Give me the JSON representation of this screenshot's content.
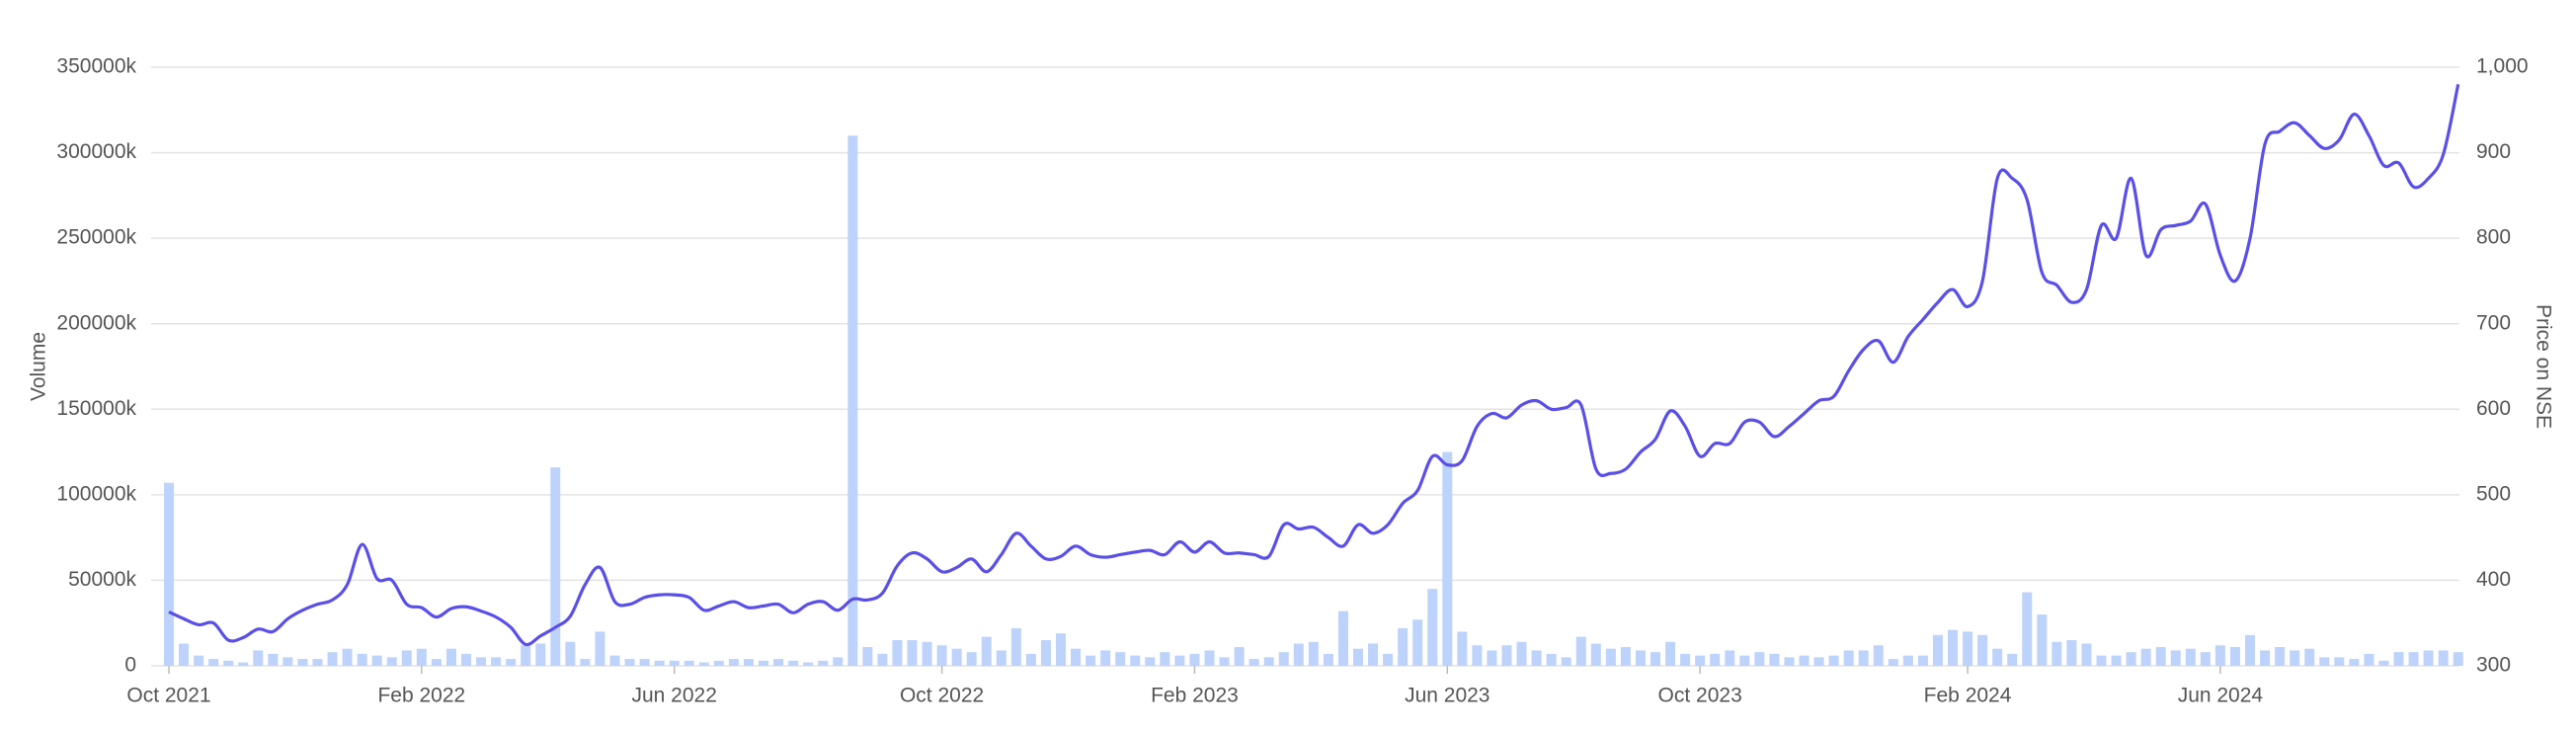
{
  "chart_data": {
    "type": "combo",
    "y_label": "Volume",
    "y2_label": "Price on NSE",
    "categories": [
      "Oct 2021",
      null,
      null,
      null,
      null,
      null,
      null,
      null,
      null,
      null,
      null,
      null,
      null,
      null,
      null,
      null,
      null,
      "Feb 2022",
      null,
      null,
      null,
      null,
      null,
      null,
      null,
      null,
      null,
      null,
      null,
      null,
      null,
      null,
      null,
      null,
      "Jun 2022",
      null,
      null,
      null,
      null,
      null,
      null,
      null,
      null,
      null,
      null,
      null,
      null,
      null,
      null,
      null,
      null,
      null,
      "Oct 2022",
      null,
      null,
      null,
      null,
      null,
      null,
      null,
      null,
      null,
      null,
      null,
      null,
      null,
      null,
      null,
      null,
      "Feb 2023",
      null,
      null,
      null,
      null,
      null,
      null,
      null,
      null,
      null,
      null,
      null,
      null,
      null,
      null,
      null,
      null,
      "Jun 2023",
      null,
      null,
      null,
      null,
      null,
      null,
      null,
      null,
      null,
      null,
      null,
      null,
      null,
      null,
      null,
      null,
      "Oct 2023",
      null,
      null,
      null,
      null,
      null,
      null,
      null,
      null,
      null,
      null,
      null,
      null,
      null,
      null,
      null,
      null,
      null,
      "Feb 2024",
      null,
      null,
      null,
      null,
      null,
      null,
      null,
      null,
      null,
      null,
      null,
      null,
      null,
      null,
      null,
      null,
      "Jun 2024",
      null,
      null,
      null,
      null,
      null,
      null,
      null,
      null,
      null,
      null,
      null,
      null,
      null,
      null,
      null,
      null
    ],
    "series": [
      {
        "type": "bar",
        "color": "#bdd3fb",
        "values": [
          107000,
          13000,
          6000,
          4000,
          3000,
          2000,
          9000,
          7000,
          5000,
          4000,
          4000,
          8000,
          10000,
          7000,
          6000,
          5000,
          9000,
          10000,
          4000,
          10000,
          7000,
          5000,
          5000,
          4000,
          12000,
          13000,
          116000,
          14000,
          4000,
          20000,
          6000,
          4000,
          4000,
          3000,
          3000,
          3000,
          2000,
          3000,
          4000,
          4000,
          3000,
          4000,
          3000,
          2000,
          3000,
          5000,
          310000,
          11000,
          7000,
          15000,
          15000,
          14000,
          12000,
          10000,
          8000,
          17000,
          9000,
          22000,
          7000,
          15000,
          19000,
          10000,
          6000,
          9000,
          8000,
          6000,
          5000,
          8000,
          6000,
          7000,
          9000,
          5000,
          11000,
          4000,
          5000,
          8000,
          13000,
          14000,
          7000,
          32000,
          10000,
          13000,
          7000,
          22000,
          27000,
          45000,
          125000,
          20000,
          12000,
          9000,
          12000,
          14000,
          9000,
          7000,
          5000,
          17000,
          13000,
          10000,
          11000,
          9000,
          8000,
          14000,
          7000,
          6000,
          7000,
          9000,
          6000,
          8000,
          7000,
          5000,
          6000,
          5000,
          6000,
          9000,
          9000,
          12000,
          4000,
          6000,
          6000,
          18000,
          21000,
          20000,
          18000,
          10000,
          7000,
          43000,
          30000,
          14000,
          15000,
          13000,
          6000,
          6000,
          8000,
          10000,
          11000,
          9000,
          10000,
          8000,
          12000,
          11000,
          18000,
          9000,
          11000,
          9000,
          10000,
          5000,
          5000,
          4000,
          7000,
          3000,
          8000,
          8000,
          9000,
          9000,
          8000
        ]
      },
      {
        "type": "line",
        "axis": "y2",
        "color": "#5a4fe6",
        "values": [
          363,
          355,
          348,
          350,
          330,
          333,
          343,
          340,
          355,
          365,
          372,
          377,
          395,
          442,
          402,
          400,
          372,
          368,
          357,
          367,
          369,
          364,
          357,
          345,
          325,
          335,
          345,
          358,
          395,
          415,
          375,
          372,
          380,
          383,
          383,
          380,
          365,
          370,
          375,
          368,
          370,
          372,
          362,
          372,
          375,
          365,
          378,
          377,
          385,
          417,
          432,
          425,
          410,
          415,
          425,
          410,
          430,
          455,
          440,
          425,
          428,
          440,
          430,
          427,
          430,
          433,
          435,
          430,
          445,
          433,
          445,
          432,
          432,
          430,
          428,
          465,
          460,
          462,
          450,
          440,
          465,
          455,
          465,
          490,
          505,
          545,
          535,
          540,
          580,
          595,
          590,
          605,
          610,
          600,
          602,
          605,
          530,
          525,
          530,
          550,
          565,
          598,
          580,
          545,
          560,
          560,
          585,
          585,
          568,
          580,
          595,
          610,
          615,
          645,
          670,
          680,
          655,
          685,
          705,
          725,
          740,
          720,
          750,
          870,
          870,
          845,
          760,
          745,
          725,
          740,
          815,
          800,
          870,
          780,
          810,
          815,
          820,
          840,
          780,
          750,
          800,
          910,
          925,
          935,
          920,
          905,
          915,
          945,
          920,
          885,
          888,
          860,
          870,
          898,
          980
        ]
      }
    ],
    "ylim": [
      0,
      350000
    ],
    "yticks": [
      0,
      {
        "value": 50000,
        "label": "50000k"
      },
      {
        "value": 100000,
        "label": "100000k"
      },
      {
        "value": 150000,
        "label": "150000k"
      },
      {
        "value": 200000,
        "label": "200000k"
      },
      {
        "value": 250000,
        "label": "250000k"
      },
      {
        "value": 300000,
        "label": "300000k"
      },
      {
        "value": 350000,
        "label": "350000k"
      }
    ],
    "y2lim": [
      300,
      1000
    ],
    "y2ticks": [
      300,
      400,
      500,
      600,
      700,
      800,
      900,
      {
        "value": 1000,
        "label": "1,000"
      }
    ],
    "grid": true
  }
}
